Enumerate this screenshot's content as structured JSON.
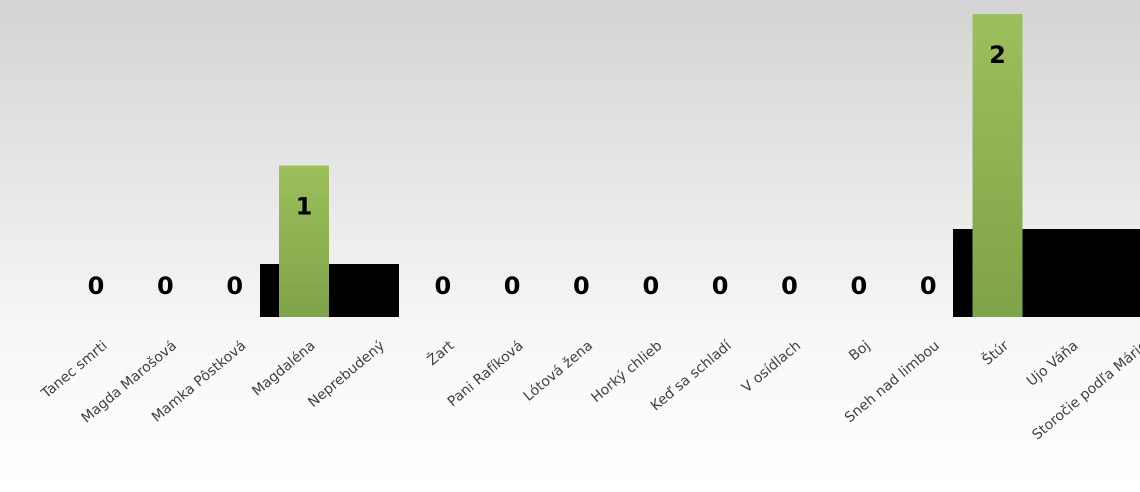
{
  "chart_data": {
    "type": "bar",
    "title": "",
    "xlabel": "",
    "ylabel": "",
    "ylim": [
      0,
      2
    ],
    "grid": false,
    "legend": "none",
    "categories": [
      "Tanec smrti",
      "Magda Marošová",
      "Mamka Pôstková",
      "Magdaléna",
      "Neprebudený",
      "Žart",
      "Pani Rafíková",
      "Lótová žena",
      "Horký chlieb",
      "Keď sa schladí",
      "V osídlach",
      "Boj",
      "Sneh nad limbou",
      "Štúr",
      "Ujo Váňa",
      "Storočie podľa Márie"
    ],
    "values": [
      0,
      0,
      0,
      1,
      0,
      0,
      0,
      0,
      0,
      0,
      0,
      0,
      0,
      2,
      0,
      0
    ],
    "value_labels": [
      "0",
      "0",
      "0",
      "1",
      "",
      "0",
      "0",
      "0",
      "0",
      "0",
      "0",
      "0",
      "0",
      "2",
      "",
      ""
    ],
    "bar_color": "#9bbb59",
    "bar_color_dark": "#7ba344"
  }
}
